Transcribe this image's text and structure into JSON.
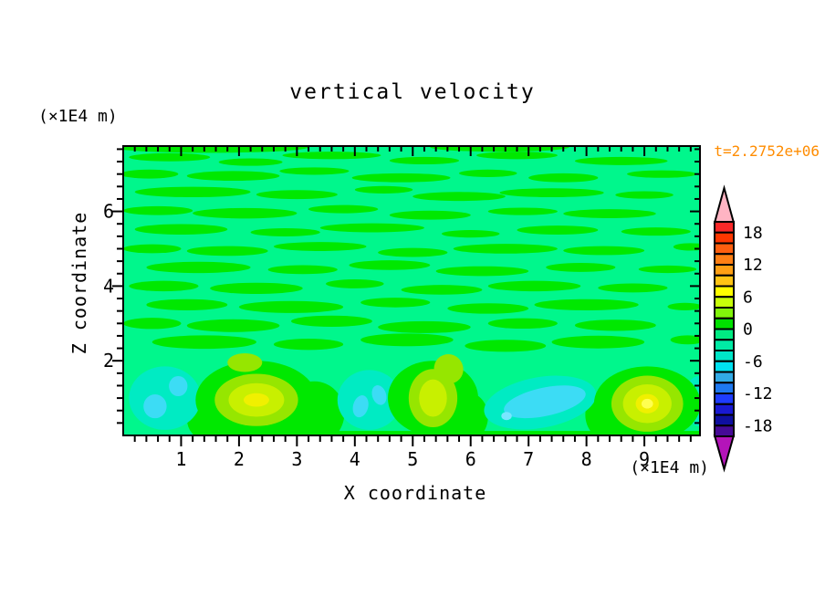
{
  "figure": {
    "title": "vertical velocity",
    "left_unit_label": "(×1E4 m)",
    "x_unit_label": "(×1E4 m)",
    "time_label": "t=2.2752e+06",
    "time_color": "#FF8C00",
    "x_axis_label": "X coordinate",
    "z_axis_label": "Z coordinate"
  },
  "chart_data": {
    "type": "heatmap",
    "title": "vertical velocity",
    "xlabel": "X coordinate",
    "ylabel": "Z coordinate",
    "x_units": "×1E4 m",
    "z_units": "×1E4 m",
    "time_annotation": "t=2.2752e+06",
    "xlim": [
      0,
      9.96
    ],
    "zlim": [
      0,
      7.75
    ],
    "x_major_ticks": [
      1,
      2,
      3,
      4,
      5,
      6,
      7,
      8,
      9
    ],
    "x_minor_step": 0.2,
    "z_major_ticks": [
      2,
      4,
      6
    ],
    "z_minor_step": 0.33333,
    "grid": false,
    "legend_position": "right",
    "colorbar": {
      "orientation": "vertical",
      "levels_min": -20,
      "levels_max": 20,
      "level_step": 2,
      "tick_values": [
        18,
        12,
        6,
        0,
        -6,
        -12,
        -18
      ],
      "tick_labels": [
        "18",
        "12",
        "6",
        "0",
        "-6",
        "-12",
        "-18"
      ],
      "segment_colors_top_to_bottom": [
        "#FA2828",
        "#FF3700",
        "#FF5F0F",
        "#FF7F14",
        "#FF9F14",
        "#FFC414",
        "#FFFF00",
        "#C8FF0A",
        "#82F50A",
        "#00E100",
        "#00EB82",
        "#00EBA5",
        "#00E6C8",
        "#00E1F0",
        "#32AAE6",
        "#1E78F0",
        "#1E3CFF",
        "#1919D2",
        "#0F0FA0",
        "#460A96"
      ],
      "over_arrow_color": "#FFB4C3",
      "under_arrow_color": "#B414B9"
    },
    "field": {
      "description": "Vertical velocity shaded contours: interior mostly between -2 and +2 (spring-green background with bright-green horizontal wavy streaks aloft). Below z~2 a row of alternating cells: downdraft (cyan/turquoise, to about -6) blobs near x=0.7, 4.25, 7.2 and right edge; updraft (chartreuse/yellow, to about +8) blobs near x=2.3, 5.35, 9.05.",
      "background_value_band": [
        -2,
        0
      ],
      "streak_value_band": [
        0,
        2
      ],
      "colors": {
        "spring": "#00F78C",
        "green": "#00E800",
        "turquoise": "#00EBC3",
        "cyan": "#3CDCF5",
        "bright_cyan": "#78E6FF",
        "chartreuse": "#96E600",
        "yellow_green": "#C8F000",
        "yellow": "#F0F000",
        "bright_yellow": "#FFFF50"
      },
      "bottom_strip": {
        "x0": 1.6,
        "x1": 9.96,
        "z_top": 0.12
      },
      "streaks": [
        [
          1.5,
          7.72,
          1.7,
          0.15
        ],
        [
          6.5,
          7.72,
          1.2,
          0.12
        ],
        [
          0.8,
          7.45,
          0.7,
          0.11
        ],
        [
          2.2,
          7.32,
          0.55,
          0.1
        ],
        [
          3.6,
          7.5,
          0.85,
          0.1
        ],
        [
          5.2,
          7.36,
          0.6,
          0.1
        ],
        [
          6.8,
          7.5,
          0.7,
          0.1
        ],
        [
          8.6,
          7.35,
          0.8,
          0.11
        ],
        [
          0.45,
          7.0,
          0.5,
          0.12
        ],
        [
          1.9,
          6.95,
          0.8,
          0.13
        ],
        [
          3.3,
          7.08,
          0.6,
          0.1
        ],
        [
          4.8,
          6.9,
          0.85,
          0.12
        ],
        [
          6.3,
          7.02,
          0.5,
          0.1
        ],
        [
          7.6,
          6.9,
          0.6,
          0.12
        ],
        [
          9.3,
          7.0,
          0.6,
          0.1
        ],
        [
          1.2,
          6.52,
          1.0,
          0.14
        ],
        [
          3.0,
          6.45,
          0.7,
          0.12
        ],
        [
          4.5,
          6.58,
          0.5,
          0.1
        ],
        [
          5.8,
          6.4,
          0.8,
          0.12
        ],
        [
          7.4,
          6.5,
          0.9,
          0.12
        ],
        [
          9.0,
          6.44,
          0.5,
          0.1
        ],
        [
          0.6,
          6.02,
          0.6,
          0.12
        ],
        [
          2.1,
          5.95,
          0.9,
          0.14
        ],
        [
          3.8,
          6.06,
          0.6,
          0.11
        ],
        [
          5.3,
          5.9,
          0.7,
          0.12
        ],
        [
          6.9,
          6.0,
          0.6,
          0.1
        ],
        [
          8.4,
          5.94,
          0.8,
          0.12
        ],
        [
          1.0,
          5.52,
          0.8,
          0.14
        ],
        [
          2.8,
          5.44,
          0.6,
          0.11
        ],
        [
          4.3,
          5.56,
          0.9,
          0.12
        ],
        [
          6.0,
          5.4,
          0.5,
          0.1
        ],
        [
          7.5,
          5.5,
          0.7,
          0.12
        ],
        [
          9.2,
          5.46,
          0.6,
          0.11
        ],
        [
          0.5,
          5.0,
          0.5,
          0.12
        ],
        [
          1.8,
          4.94,
          0.7,
          0.13
        ],
        [
          3.4,
          5.06,
          0.8,
          0.12
        ],
        [
          5.0,
          4.9,
          0.6,
          0.12
        ],
        [
          6.6,
          5.0,
          0.9,
          0.13
        ],
        [
          8.3,
          4.95,
          0.7,
          0.12
        ],
        [
          9.8,
          5.05,
          0.3,
          0.1
        ],
        [
          1.3,
          4.5,
          0.9,
          0.15
        ],
        [
          3.1,
          4.44,
          0.6,
          0.12
        ],
        [
          4.6,
          4.56,
          0.7,
          0.13
        ],
        [
          6.2,
          4.4,
          0.8,
          0.13
        ],
        [
          7.9,
          4.5,
          0.6,
          0.12
        ],
        [
          9.4,
          4.45,
          0.5,
          0.1
        ],
        [
          0.7,
          4.0,
          0.6,
          0.14
        ],
        [
          2.3,
          3.94,
          0.8,
          0.15
        ],
        [
          4.0,
          4.06,
          0.5,
          0.12
        ],
        [
          5.5,
          3.9,
          0.7,
          0.13
        ],
        [
          7.1,
          4.0,
          0.8,
          0.14
        ],
        [
          8.8,
          3.95,
          0.6,
          0.12
        ],
        [
          1.1,
          3.5,
          0.7,
          0.15
        ],
        [
          2.9,
          3.44,
          0.9,
          0.16
        ],
        [
          4.7,
          3.56,
          0.6,
          0.13
        ],
        [
          6.3,
          3.4,
          0.7,
          0.14
        ],
        [
          8.0,
          3.5,
          0.9,
          0.15
        ],
        [
          9.7,
          3.45,
          0.3,
          0.1
        ],
        [
          0.5,
          3.0,
          0.5,
          0.15
        ],
        [
          1.9,
          2.94,
          0.8,
          0.17
        ],
        [
          3.6,
          3.06,
          0.7,
          0.15
        ],
        [
          5.2,
          2.9,
          0.8,
          0.16
        ],
        [
          6.9,
          3.0,
          0.6,
          0.14
        ],
        [
          8.5,
          2.95,
          0.7,
          0.15
        ],
        [
          1.4,
          2.5,
          0.9,
          0.18
        ],
        [
          3.2,
          2.44,
          0.6,
          0.15
        ],
        [
          4.9,
          2.56,
          0.8,
          0.17
        ],
        [
          6.6,
          2.4,
          0.7,
          0.16
        ],
        [
          8.2,
          2.5,
          0.8,
          0.17
        ],
        [
          9.75,
          2.56,
          0.3,
          0.12
        ]
      ],
      "green_columns": [
        [
          1.4,
          0.45,
          0.3,
          0.55
        ],
        [
          3.3,
          0.6,
          0.52,
          0.85
        ],
        [
          5.95,
          0.5,
          0.35,
          0.65
        ],
        [
          8.4,
          0.55,
          0.42,
          0.7
        ]
      ],
      "cool_blobs": [
        {
          "cx": 0.72,
          "cz": 1.0,
          "rx": 0.62,
          "rz": 0.85,
          "rot": 0,
          "cores": [
            [
              0.55,
              0.78,
              0.2,
              0.32,
              0
            ],
            [
              0.95,
              1.32,
              0.16,
              0.27,
              0
            ]
          ],
          "spots": []
        },
        {
          "cx": 4.25,
          "cz": 0.95,
          "rx": 0.55,
          "rz": 0.8,
          "rot": 0,
          "cores": [
            [
              4.1,
              0.78,
              0.13,
              0.3,
              15
            ],
            [
              4.42,
              1.08,
              0.12,
              0.27,
              -18
            ]
          ],
          "spots": []
        },
        {
          "cx": 7.2,
          "cz": 0.88,
          "rx": 0.98,
          "rz": 0.68,
          "rot": -10,
          "cores": [
            [
              7.28,
              0.9,
              0.72,
              0.38,
              -12
            ]
          ],
          "spots": [
            [
              6.62,
              0.52,
              0.09,
              0.11
            ]
          ]
        },
        {
          "cx": 9.97,
          "cz": 0.92,
          "rx": 0.3,
          "rz": 0.68,
          "rot": 0,
          "cores": [],
          "spots": []
        }
      ],
      "warm_blobs": [
        {
          "cx": 2.3,
          "cz": 0.95,
          "rings": [
            [
              "green",
              1.05,
              1.05
            ],
            [
              "chartreuse",
              0.72,
              0.7
            ],
            [
              "yellow_green",
              0.48,
              0.45
            ],
            [
              "yellow",
              0.22,
              0.18
            ]
          ]
        },
        {
          "cx": 5.35,
          "cz": 1.0,
          "rings": [
            [
              "green",
              0.78,
              1.0
            ],
            [
              "chartreuse",
              0.42,
              0.78
            ],
            [
              "yellow_green",
              0.24,
              0.5
            ]
          ]
        },
        {
          "cx": 9.05,
          "cz": 0.85,
          "rings": [
            [
              "green",
              0.92,
              1.0
            ],
            [
              "chartreuse",
              0.62,
              0.75
            ],
            [
              "yellow_green",
              0.42,
              0.52
            ],
            [
              "yellow",
              0.2,
              0.26
            ],
            [
              "bright_yellow",
              0.1,
              0.13
            ]
          ]
        }
      ],
      "wisps": [
        [
          5.62,
          1.78,
          0.25,
          0.4,
          -35
        ],
        [
          2.1,
          1.95,
          0.3,
          0.25,
          0
        ]
      ]
    }
  }
}
